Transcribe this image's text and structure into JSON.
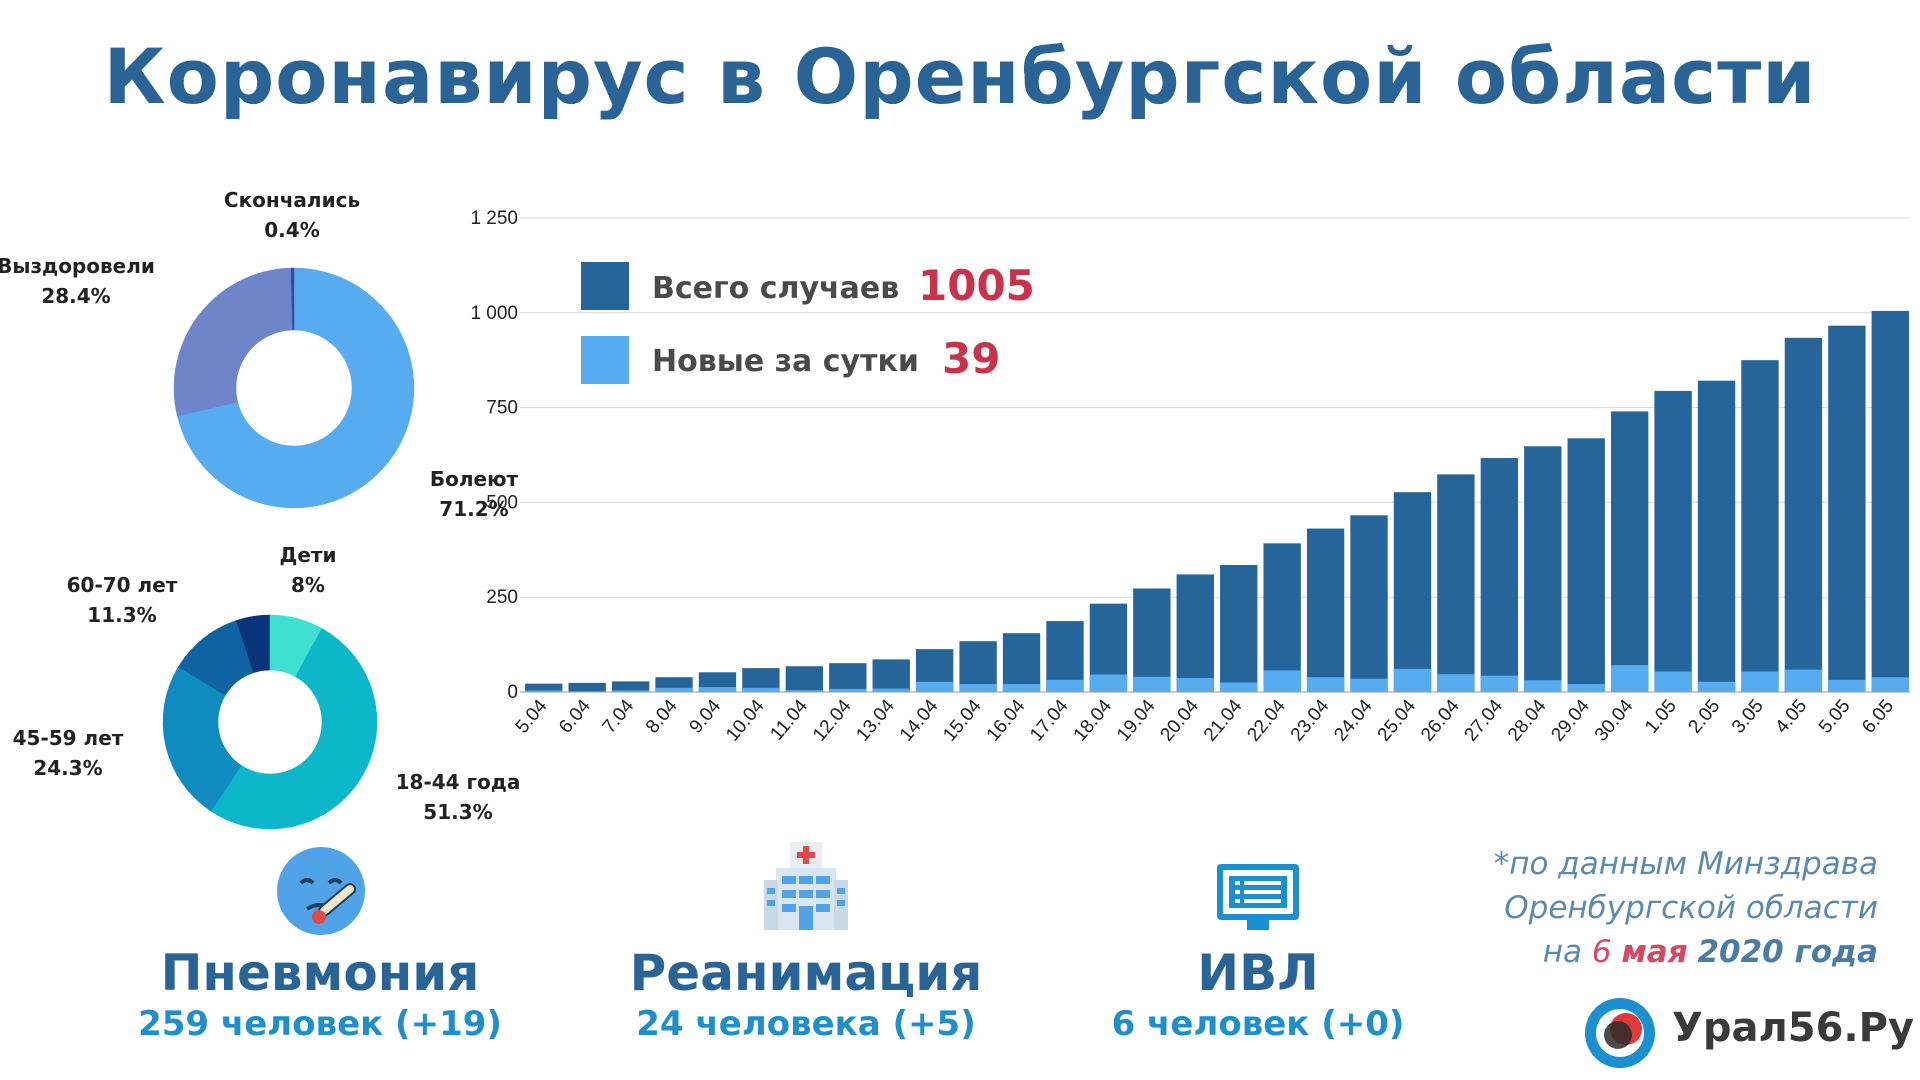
{
  "title": "Коронавирус в Оренбургской области",
  "colors": {
    "title": "#2a6496",
    "total_bar": "#266599",
    "new_bar": "#56acef",
    "accent_red": "#c8334a"
  },
  "chart_data": [
    {
      "type": "pie",
      "subtype": "donut",
      "slices": [
        {
          "label": "Болеют",
          "value_text": "71.2%",
          "value": 71.2,
          "color": "#56acef"
        },
        {
          "label": "Выздоровели",
          "value_text": "28.4%",
          "value": 28.4,
          "color": "#6e86c9"
        },
        {
          "label": "Скончались",
          "value_text": "0.4%",
          "value": 0.4,
          "color": "#3a4a9a"
        }
      ]
    },
    {
      "type": "pie",
      "subtype": "donut",
      "slices": [
        {
          "label": "18-44 года",
          "value_text": "51.3%",
          "value": 51.3,
          "color": "#0bb7c9"
        },
        {
          "label": "45-59 лет",
          "value_text": "24.3%",
          "value": 24.3,
          "color": "#0f8bbf"
        },
        {
          "label": "60-70 лет",
          "value_text": "11.3%",
          "value": 11.3,
          "color": "#0f63a3"
        },
        {
          "label": "",
          "value_text": "",
          "value": 5.1,
          "color": "#08357a"
        },
        {
          "label": "Дети",
          "value_text": "8%",
          "value": 8,
          "color": "#3fe0d0"
        }
      ]
    },
    {
      "type": "bar",
      "stacked_overlay": true,
      "categories": [
        "5.04",
        "6.04",
        "7.04",
        "8.04",
        "9.04",
        "10.04",
        "11.04",
        "12.04",
        "13.04",
        "14.04",
        "15.04",
        "16.04",
        "17.04",
        "18.04",
        "19.04",
        "20.04",
        "21.04",
        "22.04",
        "23.04",
        "24.04",
        "25.04",
        "26.04",
        "27.04",
        "28.04",
        "29.04",
        "30.04",
        "1.05",
        "2.05",
        "3.05",
        "4.05",
        "5.05",
        "6.05"
      ],
      "series": [
        {
          "name": "Всего случаев",
          "values": [
            22,
            24,
            28,
            39,
            52,
            63,
            68,
            76,
            86,
            113,
            134,
            155,
            187,
            233,
            273,
            310,
            335,
            392,
            431,
            466,
            527,
            574,
            617,
            648,
            669,
            740,
            794,
            821,
            875,
            934,
            966,
            1005
          ]
        },
        {
          "name": "Новые за сутки",
          "values": [
            4,
            2,
            4,
            11,
            13,
            11,
            5,
            8,
            9,
            27,
            21,
            21,
            32,
            46,
            40,
            37,
            25,
            57,
            39,
            35,
            61,
            47,
            43,
            31,
            21,
            71,
            54,
            27,
            54,
            59,
            32,
            39
          ]
        }
      ],
      "ylim": [
        0,
        1250
      ],
      "yticks": [
        0,
        250,
        500,
        750,
        1000,
        1250
      ],
      "ytick_labels": [
        "0",
        "250",
        "500",
        "750",
        "1 000",
        "1 250"
      ],
      "grid": true,
      "legend": [
        {
          "label": "Всего случаев",
          "value": "1005"
        },
        {
          "label": "Новые за сутки",
          "value": "39"
        }
      ],
      "legend_position": "top-left"
    }
  ],
  "stats": [
    {
      "name": "Пневмония",
      "value": "259 человек (+19)",
      "icon": "sick-face-icon"
    },
    {
      "name": "Реанимация",
      "value": "24 человека (+5)",
      "icon": "hospital-icon"
    },
    {
      "name": "ИВЛ",
      "value": "6 человек (+0)",
      "icon": "monitor-icon"
    }
  ],
  "source_note": {
    "line1": "*по данным Минздрава",
    "line2": "Оренбургской области",
    "line3_prefix": "на ",
    "day": "6",
    "month": "мая",
    "year": "2020 года"
  },
  "brand": {
    "name": "Урал56.Ру",
    "logo": "ural56-logo-icon"
  }
}
